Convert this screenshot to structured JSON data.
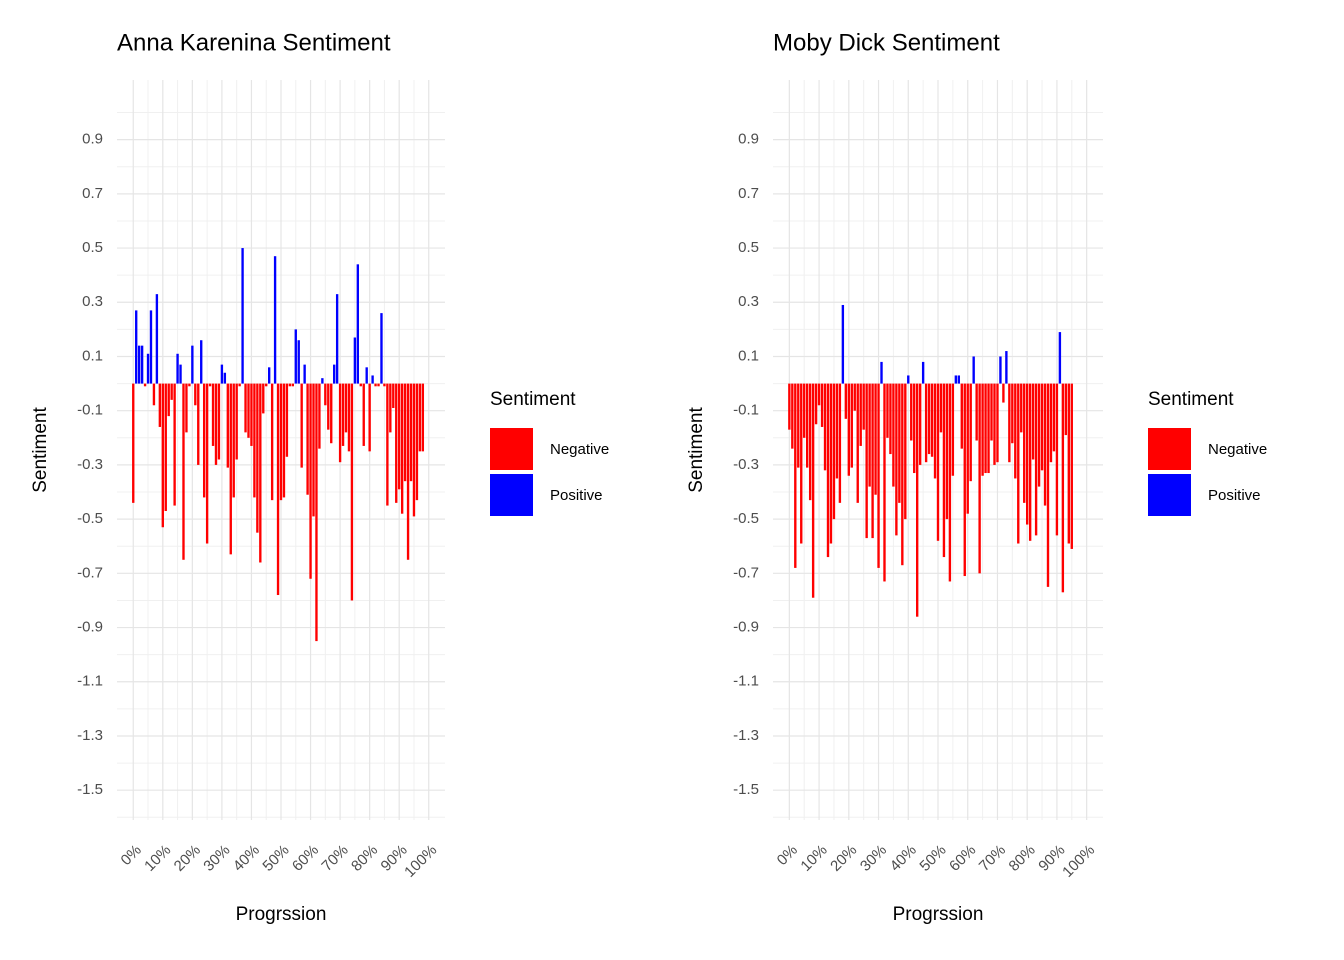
{
  "chart_data": [
    {
      "type": "bar",
      "title": "Anna Karenina Sentiment",
      "x_label": "Progrssion",
      "y_label": "Sentiment",
      "x": [
        0,
        1,
        2,
        3,
        4,
        5,
        6,
        7,
        8,
        9,
        10,
        11,
        12,
        13,
        14,
        15,
        16,
        17,
        18,
        19,
        20,
        21,
        22,
        23,
        24,
        25,
        26,
        27,
        28,
        29,
        30,
        31,
        32,
        33,
        34,
        35,
        36,
        37,
        38,
        39,
        40,
        41,
        42,
        43,
        44,
        45,
        46,
        47,
        48,
        49,
        50,
        51,
        52,
        53,
        54,
        55,
        56,
        57,
        58,
        59,
        60,
        61,
        62,
        63,
        64,
        65,
        66,
        67,
        68,
        69,
        70,
        71,
        72,
        73,
        74,
        75,
        76,
        77,
        78,
        79,
        80,
        81,
        82,
        83,
        84,
        85,
        86,
        87,
        88,
        89,
        90,
        91,
        92,
        93,
        94,
        95,
        96,
        97,
        98
      ],
      "values": [
        -0.44,
        0.27,
        0.14,
        0.14,
        -0.01,
        0.11,
        0.27,
        -0.08,
        0.33,
        -0.16,
        -0.53,
        -0.47,
        -0.12,
        -0.06,
        -0.45,
        0.11,
        0.07,
        -0.65,
        -0.18,
        -0.01,
        0.14,
        -0.08,
        -0.3,
        0.16,
        -0.42,
        -0.59,
        -0.01,
        -0.23,
        -0.3,
        -0.28,
        0.07,
        0.04,
        -0.31,
        -0.63,
        -0.42,
        -0.28,
        -0.01,
        0.5,
        -0.18,
        -0.2,
        -0.23,
        -0.42,
        -0.55,
        -0.66,
        -0.11,
        -0.01,
        0.06,
        -0.43,
        0.47,
        -0.78,
        -0.43,
        -0.42,
        -0.27,
        -0.01,
        -0.01,
        0.2,
        0.16,
        -0.31,
        0.07,
        -0.41,
        -0.72,
        -0.49,
        -0.95,
        -0.24,
        0.02,
        -0.08,
        -0.17,
        -0.22,
        0.07,
        0.33,
        -0.29,
        -0.23,
        -0.18,
        -0.25,
        -0.8,
        0.17,
        0.44,
        -0.01,
        -0.23,
        0.06,
        -0.25,
        0.03,
        -0.01,
        -0.01,
        0.26,
        -0.01,
        -0.45,
        -0.18,
        -0.09,
        -0.44,
        -0.39,
        -0.48,
        -0.36,
        -0.65,
        -0.36,
        -0.49,
        -0.43,
        -0.25,
        -0.25
      ],
      "xlim": [
        -5.5,
        105.5
      ],
      "xticks": [
        {
          "value": 0,
          "label": "0%"
        },
        {
          "value": 10,
          "label": "10%"
        },
        {
          "value": 20,
          "label": "20%"
        },
        {
          "value": 30,
          "label": "30%"
        },
        {
          "value": 40,
          "label": "40%"
        },
        {
          "value": 50,
          "label": "50%"
        },
        {
          "value": 60,
          "label": "60%"
        },
        {
          "value": 70,
          "label": "70%"
        },
        {
          "value": 80,
          "label": "80%"
        },
        {
          "value": 90,
          "label": "90%"
        },
        {
          "value": 100,
          "label": "100%"
        }
      ],
      "ylim": [
        -1.61,
        1.12
      ],
      "yticks": [
        0.9,
        0.7,
        0.5,
        0.3,
        0.1,
        -0.1,
        -0.3,
        -0.5,
        -0.7,
        -0.9,
        -1.1,
        -1.3,
        -1.5
      ],
      "grid": true,
      "legend": {
        "title": "Sentiment",
        "entries": [
          {
            "name": "Negative",
            "color": "#ff0000"
          },
          {
            "name": "Positive",
            "color": "#0000ff"
          }
        ]
      }
    },
    {
      "type": "bar",
      "title": "Moby Dick Sentiment",
      "x_label": "Progrssion",
      "y_label": "Sentiment",
      "x": [
        0,
        1,
        2,
        3,
        4,
        5,
        6,
        7,
        8,
        9,
        10,
        11,
        12,
        13,
        14,
        15,
        16,
        17,
        18,
        19,
        20,
        21,
        22,
        23,
        24,
        25,
        26,
        27,
        28,
        29,
        30,
        31,
        32,
        33,
        34,
        35,
        36,
        37,
        38,
        39,
        40,
        41,
        42,
        43,
        44,
        45,
        46,
        47,
        48,
        49,
        50,
        51,
        52,
        53,
        54,
        55,
        56,
        57,
        58,
        59,
        60,
        61,
        62,
        63,
        64,
        65,
        66,
        67,
        68,
        69,
        70,
        71,
        72,
        73,
        74,
        75,
        76,
        77,
        78,
        79,
        80,
        81,
        82,
        83,
        84,
        85,
        86,
        87,
        88,
        89,
        90,
        91,
        92,
        93,
        94,
        95
      ],
      "values": [
        -0.17,
        -0.24,
        -0.68,
        -0.31,
        -0.59,
        -0.2,
        -0.31,
        -0.43,
        -0.79,
        -0.15,
        -0.08,
        -0.16,
        -0.32,
        -0.64,
        -0.59,
        -0.5,
        -0.35,
        -0.44,
        0.29,
        -0.13,
        -0.34,
        -0.31,
        -0.1,
        -0.44,
        -0.23,
        -0.17,
        -0.57,
        -0.38,
        -0.57,
        -0.41,
        -0.68,
        0.08,
        -0.73,
        -0.2,
        -0.26,
        -0.38,
        -0.56,
        -0.44,
        -0.67,
        -0.5,
        0.03,
        -0.21,
        -0.33,
        -0.86,
        -0.3,
        0.08,
        -0.29,
        -0.26,
        -0.27,
        -0.35,
        -0.58,
        -0.18,
        -0.64,
        -0.5,
        -0.73,
        -0.34,
        0.03,
        0.03,
        -0.24,
        -0.71,
        -0.48,
        -0.36,
        0.1,
        -0.21,
        -0.7,
        -0.34,
        -0.33,
        -0.33,
        -0.21,
        -0.3,
        -0.29,
        0.1,
        -0.07,
        0.12,
        -0.29,
        -0.22,
        -0.35,
        -0.59,
        -0.18,
        -0.44,
        -0.52,
        -0.58,
        -0.28,
        -0.56,
        -0.38,
        -0.32,
        -0.45,
        -0.75,
        -0.29,
        -0.25,
        -0.56,
        0.19,
        -0.77,
        -0.19,
        -0.59,
        -0.61
      ],
      "xlim": [
        -5.5,
        105.5
      ],
      "xticks": [
        {
          "value": 0,
          "label": "0%"
        },
        {
          "value": 10,
          "label": "10%"
        },
        {
          "value": 20,
          "label": "20%"
        },
        {
          "value": 30,
          "label": "30%"
        },
        {
          "value": 40,
          "label": "40%"
        },
        {
          "value": 50,
          "label": "50%"
        },
        {
          "value": 60,
          "label": "60%"
        },
        {
          "value": 70,
          "label": "70%"
        },
        {
          "value": 80,
          "label": "80%"
        },
        {
          "value": 90,
          "label": "90%"
        },
        {
          "value": 100,
          "label": "100%"
        }
      ],
      "ylim": [
        -1.61,
        1.12
      ],
      "yticks": [
        0.9,
        0.7,
        0.5,
        0.3,
        0.1,
        -0.1,
        -0.3,
        -0.5,
        -0.7,
        -0.9,
        -1.1,
        -1.3,
        -1.5
      ],
      "grid": true,
      "legend": {
        "title": "Sentiment",
        "entries": [
          {
            "name": "Negative",
            "color": "#ff0000"
          },
          {
            "name": "Positive",
            "color": "#0000ff"
          }
        ]
      }
    }
  ]
}
